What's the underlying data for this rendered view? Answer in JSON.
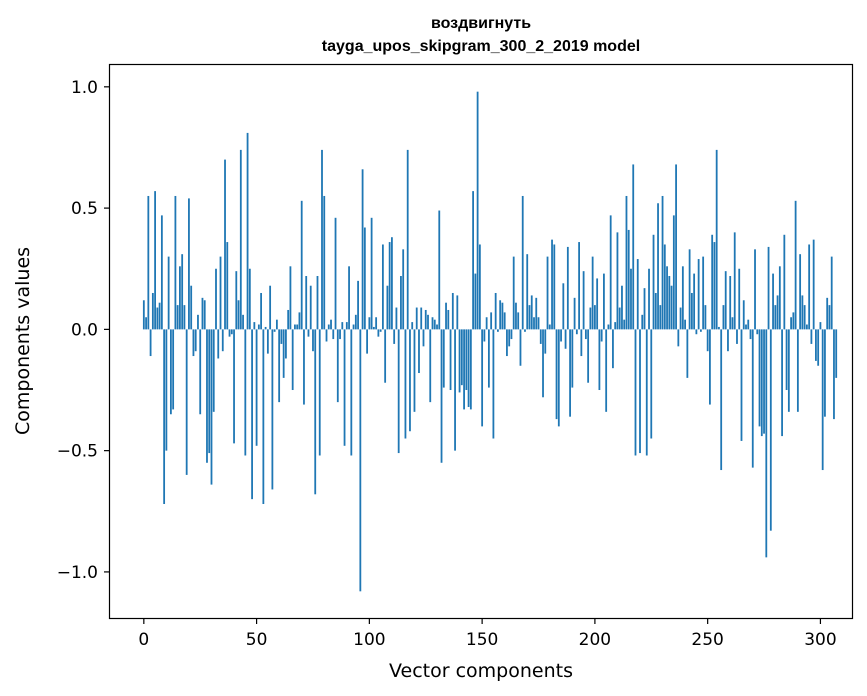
{
  "chart_data": {
    "type": "bar",
    "title_line1": "воздвигнуть",
    "title_line2": "tayga_upos_skipgram_300_2_2019 model",
    "xlabel": "Vector components",
    "ylabel": "Components values",
    "xlim": [
      -15,
      314
    ],
    "ylim": [
      -1.19,
      1.09
    ],
    "xticks": [
      0,
      50,
      100,
      150,
      200,
      250,
      300
    ],
    "xtick_labels": [
      "0",
      "50",
      "100",
      "150",
      "200",
      "250",
      "300"
    ],
    "yticks": [
      -1.0,
      -0.5,
      0.0,
      0.5,
      1.0
    ],
    "ytick_labels": [
      "−1.0",
      "−0.5",
      "0.0",
      "0.5",
      "1.0"
    ],
    "grid": false,
    "bar_color": "#1f77b4",
    "values": [
      0.12,
      0.05,
      0.55,
      -0.11,
      0.15,
      0.57,
      0.09,
      0.11,
      0.47,
      -0.72,
      -0.5,
      0.3,
      -0.35,
      -0.33,
      0.55,
      0.1,
      0.26,
      0.31,
      0.1,
      -0.6,
      0.54,
      0.18,
      -0.11,
      -0.09,
      0.06,
      -0.35,
      0.13,
      0.12,
      -0.55,
      -0.51,
      -0.64,
      -0.34,
      0.25,
      -0.12,
      0.3,
      -0.09,
      0.7,
      0.36,
      -0.03,
      -0.02,
      -0.47,
      0.24,
      0.12,
      0.74,
      0.06,
      -0.52,
      0.81,
      0.25,
      -0.7,
      0.03,
      -0.48,
      0.02,
      0.15,
      -0.72,
      0.01,
      -0.1,
      0.18,
      -0.66,
      -0.01,
      0.04,
      -0.3,
      -0.06,
      -0.2,
      -0.12,
      0.08,
      0.26,
      -0.25,
      0.02,
      0.02,
      0.07,
      0.53,
      -0.31,
      0.22,
      -0.03,
      0.18,
      -0.09,
      -0.68,
      0.22,
      -0.52,
      0.74,
      0.55,
      -0.05,
      0.02,
      0.04,
      -0.04,
      0.46,
      -0.3,
      -0.04,
      0.03,
      -0.48,
      0.03,
      0.26,
      -0.52,
      0.02,
      0.06,
      0.2,
      -1.08,
      0.66,
      0.42,
      -0.1,
      0.05,
      0.46,
      0.01,
      0.05,
      -0.03,
      -0.01,
      0.35,
      -0.22,
      0.18,
      0.36,
      0.38,
      -0.06,
      0.09,
      -0.51,
      0.22,
      0.33,
      -0.45,
      0.74,
      -0.42,
      0.03,
      -0.34,
      0.09,
      -0.18,
      0.09,
      -0.07,
      0.08,
      0.06,
      -0.3,
      0.05,
      0.04,
      0.02,
      0.49,
      -0.55,
      -0.24,
      0.11,
      0.08,
      -0.25,
      0.15,
      -0.5,
      0.14,
      -0.26,
      -0.23,
      -0.33,
      -0.25,
      -0.32,
      -0.33,
      0.57,
      0.23,
      0.98,
      0.35,
      -0.4,
      -0.05,
      0.05,
      -0.24,
      0.07,
      -0.45,
      0.15,
      -0.01,
      0.12,
      0.11,
      0.07,
      -0.11,
      -0.07,
      -0.04,
      0.3,
      0.11,
      0.07,
      -0.15,
      0.55,
      -0.01,
      0.31,
      0.1,
      0.14,
      0.05,
      0.13,
      0.05,
      -0.06,
      -0.28,
      -0.1,
      0.3,
      0.02,
      0.37,
      0.35,
      -0.37,
      -0.4,
      -0.05,
      0.19,
      -0.08,
      0.34,
      -0.36,
      -0.24,
      0.13,
      -0.02,
      0.36,
      -0.11,
      0.24,
      -0.04,
      -0.22,
      0.09,
      0.3,
      0.1,
      0.21,
      -0.25,
      -0.05,
      0.23,
      -0.34,
      0.02,
      0.47,
      -0.16,
      0.03,
      0.4,
      0.09,
      0.18,
      0.04,
      0.55,
      0.41,
      0.25,
      0.68,
      -0.52,
      0.29,
      -0.51,
      0.06,
      0.17,
      -0.52,
      0.25,
      -0.45,
      0.39,
      0.15,
      0.52,
      0.1,
      0.55,
      0.35,
      0.26,
      0.22,
      0.18,
      0.47,
      0.68,
      -0.07,
      0.09,
      0.26,
      0.04,
      -0.2,
      0.33,
      0.15,
      0.23,
      -0.02,
      0.29,
      -0.01,
      0.3,
      0.1,
      -0.09,
      -0.31,
      0.39,
      0.36,
      0.74,
      0.01,
      -0.58,
      0.1,
      0.24,
      -0.09,
      0.22,
      0.05,
      0.4,
      -0.06,
      0.25,
      -0.46,
      0.12,
      0.02,
      0.04,
      -0.04,
      -0.57,
      0.33,
      -0.02,
      -0.4,
      -0.44,
      -0.43,
      -0.94,
      0.34,
      -0.83,
      0.23,
      0.1,
      0.14,
      0.26,
      -0.44,
      0.39,
      -0.25,
      -0.34,
      0.05,
      0.07,
      0.53,
      -0.34,
      0.31,
      0.14,
      0.1,
      0.02,
      0.35,
      -0.06,
      0.37,
      -0.13,
      -0.15,
      0.03,
      -0.58,
      -0.36,
      0.13,
      0.1,
      0.3,
      -0.37,
      -0.2
    ]
  }
}
